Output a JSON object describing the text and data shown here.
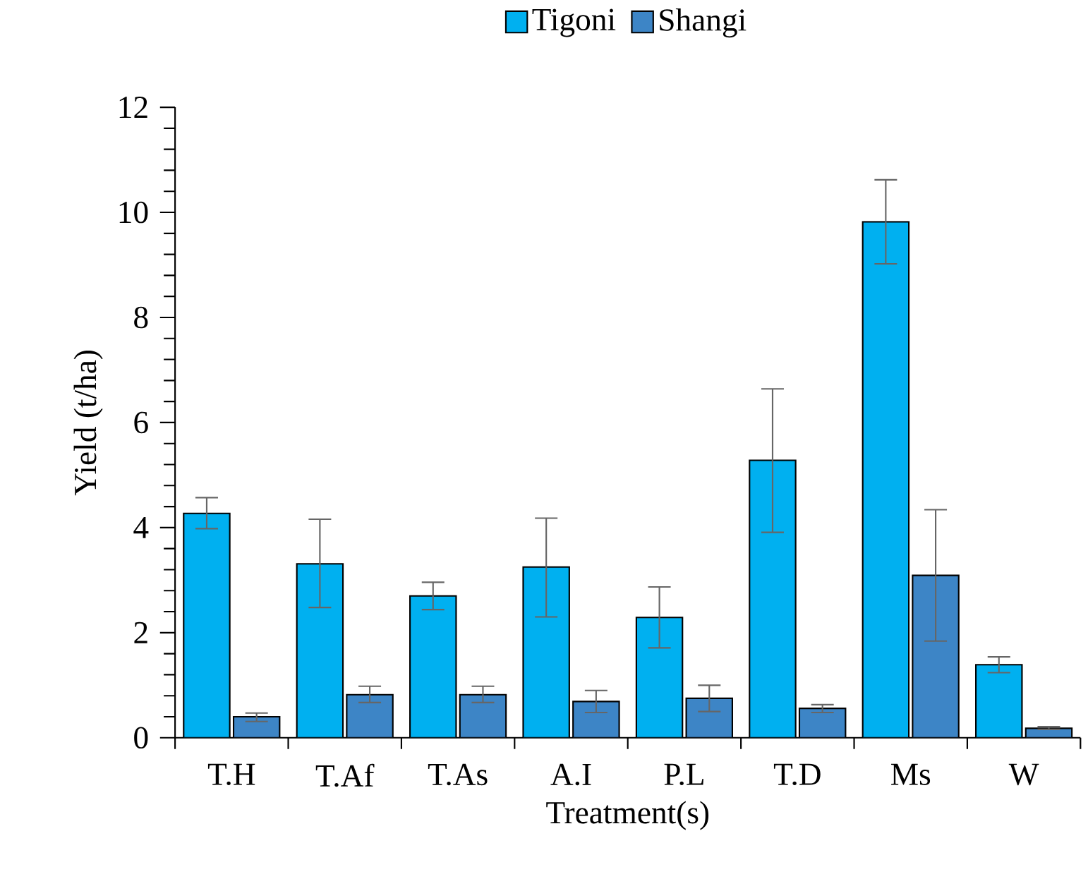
{
  "chart_data": {
    "type": "bar",
    "xlabel": "Treatment(s)",
    "ylabel": "Yield (t/ha)",
    "categories": [
      "T.H",
      "T.Af",
      "T.As",
      "A.I",
      "P.L",
      "T.D",
      "Ms",
      "W"
    ],
    "series": [
      {
        "name": "Tigoni",
        "color": "#00b0f0",
        "values": [
          4.27,
          3.31,
          2.7,
          3.25,
          2.29,
          5.28,
          9.82,
          1.39
        ],
        "errors": [
          [
            3.98,
            4.57
          ],
          [
            2.48,
            4.16
          ],
          [
            2.44,
            2.96
          ],
          [
            2.3,
            4.18
          ],
          [
            1.71,
            2.87
          ],
          [
            3.91,
            6.64
          ],
          [
            9.02,
            10.62
          ],
          [
            1.24,
            1.54
          ]
        ]
      },
      {
        "name": "Shangi",
        "color": "#3d85c6",
        "values": [
          0.4,
          0.82,
          0.82,
          0.69,
          0.75,
          0.56,
          3.09,
          0.18
        ],
        "errors": [
          [
            0.31,
            0.47
          ],
          [
            0.67,
            0.98
          ],
          [
            0.67,
            0.98
          ],
          [
            0.48,
            0.9
          ],
          [
            0.5,
            1.0
          ],
          [
            0.48,
            0.63
          ],
          [
            1.84,
            4.34
          ],
          [
            0.16,
            0.21
          ]
        ]
      }
    ],
    "ylim": [
      0,
      12
    ],
    "yticks": [
      0,
      2,
      4,
      6,
      8,
      10,
      12
    ],
    "grid": false,
    "legend": "top"
  }
}
